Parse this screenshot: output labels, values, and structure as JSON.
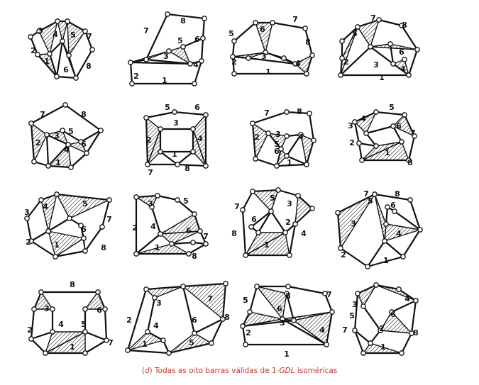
{
  "caption": {
    "letter": "d",
    "text_before": "Todas as oito barras válidas de 1-",
    "text_italic": "GDL",
    "text_after": " isoméricas"
  },
  "colors": {
    "ink": "#111111",
    "caption": "#c0392b"
  },
  "diagrams": [
    {
      "id": 1,
      "labels": [
        "1",
        "2",
        "3",
        "4",
        "5",
        "6",
        "7",
        "8"
      ]
    },
    {
      "id": 2,
      "labels": [
        "1",
        "2",
        "3",
        "4",
        "5",
        "6",
        "7",
        "8"
      ]
    },
    {
      "id": 3,
      "labels": [
        "1",
        "2",
        "3",
        "4",
        "5",
        "6",
        "7",
        "8"
      ]
    },
    {
      "id": 4,
      "labels": [
        "1",
        "2",
        "3",
        "4",
        "5",
        "6",
        "7",
        "8"
      ]
    },
    {
      "id": 5,
      "labels": [
        "1",
        "2",
        "3",
        "4",
        "5",
        "6",
        "7",
        "8"
      ]
    },
    {
      "id": 6,
      "labels": [
        "1",
        "2",
        "3",
        "4",
        "5",
        "6",
        "7",
        "8"
      ]
    },
    {
      "id": 7,
      "labels": [
        "1",
        "2",
        "3",
        "4",
        "5",
        "6",
        "7",
        "8"
      ]
    },
    {
      "id": 8,
      "labels": [
        "1",
        "2",
        "3",
        "4",
        "5",
        "6",
        "7",
        "8"
      ]
    },
    {
      "id": 9,
      "labels": [
        "1",
        "2",
        "3",
        "4",
        "5",
        "6",
        "7",
        "8"
      ]
    },
    {
      "id": 10,
      "labels": [
        "1",
        "2",
        "3",
        "4",
        "5",
        "6",
        "7",
        "8"
      ]
    },
    {
      "id": 11,
      "labels": [
        "1",
        "2",
        "3",
        "4",
        "5",
        "6",
        "7",
        "8"
      ]
    },
    {
      "id": 12,
      "labels": [
        "1",
        "2",
        "3",
        "4",
        "5",
        "6",
        "7",
        "8"
      ]
    },
    {
      "id": 13,
      "labels": [
        "1",
        "2",
        "3",
        "4",
        "5",
        "6",
        "7",
        "8"
      ]
    },
    {
      "id": 14,
      "labels": [
        "1",
        "2",
        "3",
        "4",
        "5",
        "6",
        "7",
        "8"
      ]
    },
    {
      "id": 15,
      "labels": [
        "1",
        "2",
        "3",
        "4",
        "5",
        "6",
        "7",
        "8"
      ]
    },
    {
      "id": 16,
      "labels": [
        "1",
        "2",
        "3",
        "4",
        "5",
        "6",
        "7",
        "8"
      ]
    }
  ]
}
